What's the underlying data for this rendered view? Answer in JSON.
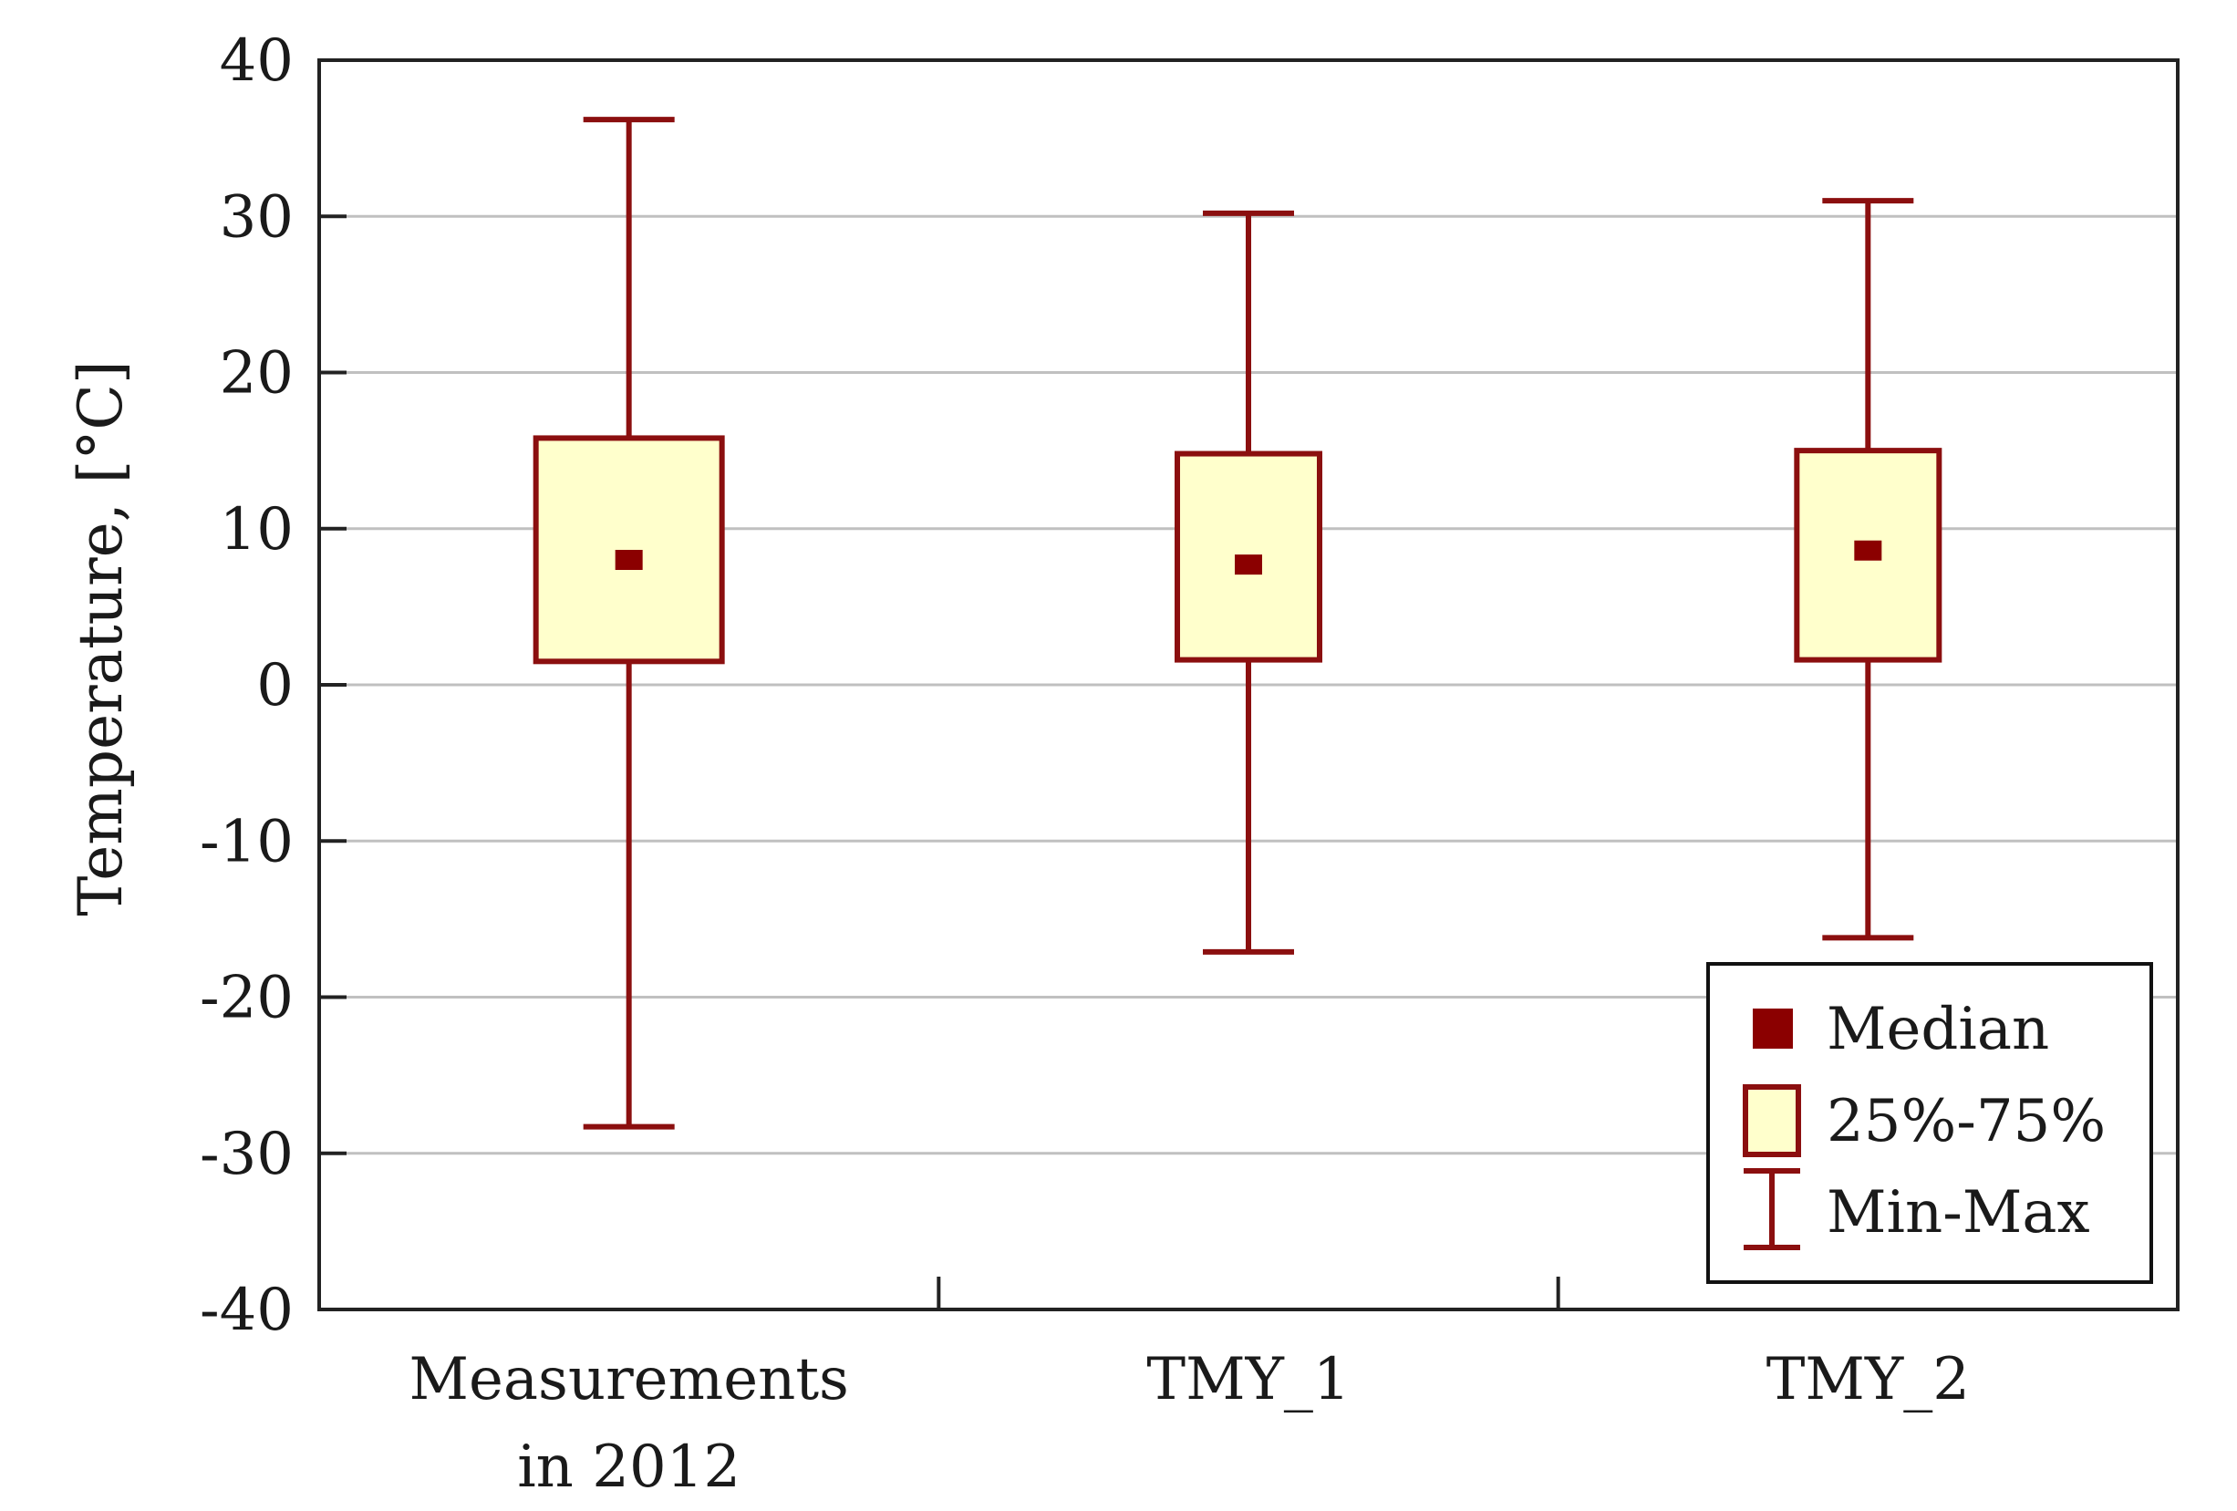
{
  "chart_data": {
    "type": "boxplot",
    "title": "",
    "xlabel": "",
    "ylabel": "Temperature, [°C]",
    "ylim": [
      -40,
      40
    ],
    "yticks": [
      40,
      30,
      20,
      10,
      0,
      -10,
      -20,
      -30,
      -40
    ],
    "ytick_labels": [
      "40",
      "30",
      "20",
      "10",
      "0",
      "-10",
      "-20",
      "-30",
      "-40"
    ],
    "grid": true,
    "legend_position": "bottom-right",
    "categories": [
      {
        "line1": "Measurements",
        "line2": "in 2012"
      },
      {
        "line1": "TMY_1",
        "line2": ""
      },
      {
        "line1": "TMY_2",
        "line2": ""
      }
    ],
    "series": [
      {
        "name": "Measurements in 2012",
        "min": -28.3,
        "q1": 1.5,
        "median": 8.0,
        "q3": 15.8,
        "max": 36.2
      },
      {
        "name": "TMY_1",
        "min": -17.1,
        "q1": 1.6,
        "median": 7.7,
        "q3": 14.8,
        "max": 30.2
      },
      {
        "name": "TMY_2",
        "min": -16.2,
        "q1": 1.6,
        "median": 8.6,
        "q3": 15.0,
        "max": 31.0
      }
    ],
    "legend": {
      "median": "Median",
      "box": "25%-75%",
      "whisker": "Min-Max"
    },
    "colors": {
      "box_fill": "#ffffcc",
      "stroke": "#8b0f0f",
      "median": "#8b0000",
      "grid": "#c0c0c0",
      "axis": "#222222"
    }
  }
}
